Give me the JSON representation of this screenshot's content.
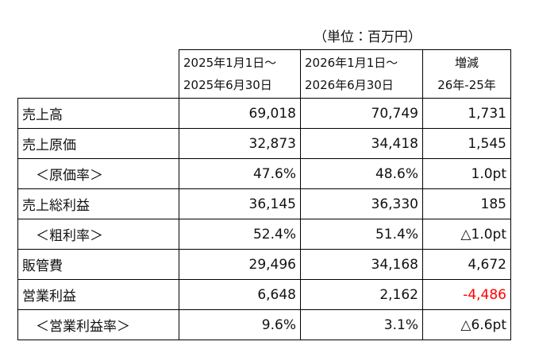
{
  "unit": "（単位：百万円）",
  "table": {
    "headers": [
      [
        "2025年1月1日～",
        "2025年6月30日"
      ],
      [
        "2026年1月1日～",
        "2026年6月30日"
      ],
      [
        "増減",
        "26年-25年"
      ]
    ],
    "rows": [
      [
        "売上高",
        "69,018",
        "70,749",
        "1,731"
      ],
      [
        "売上原価",
        "32,873",
        "34,418",
        "1,545"
      ],
      [
        "＜原価率＞",
        "47.6%",
        "48.6%",
        "1.0pt"
      ],
      [
        "売上総利益",
        "36,145",
        "36,330",
        "185"
      ],
      [
        "＜粗利率＞",
        "52.4%",
        "51.4%",
        "△1.0pt"
      ],
      [
        "販管費",
        "29,496",
        "34,168",
        "4,672"
      ],
      [
        "営業利益",
        "6,648",
        "2,162",
        "-4,486"
      ],
      [
        "＜営業利益率＞",
        "9.6%",
        "3.1%",
        "△6.6pt"
      ]
    ]
  }
}
